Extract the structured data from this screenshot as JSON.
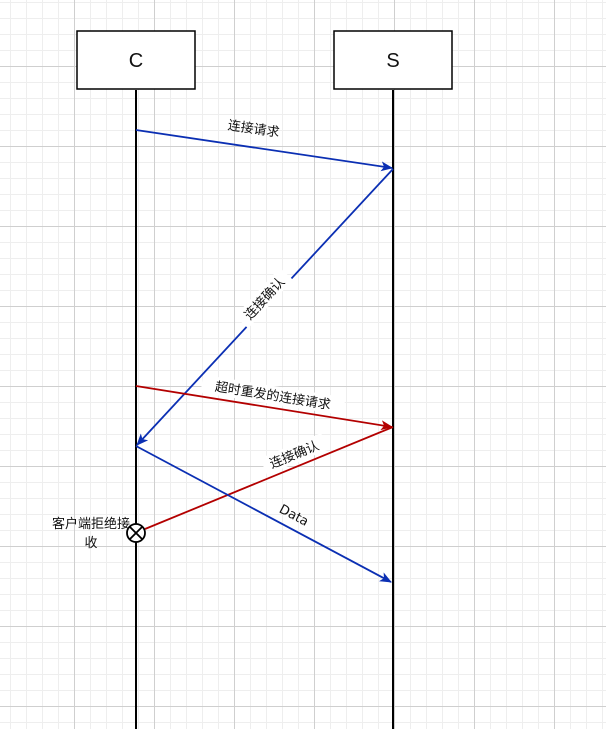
{
  "participants": {
    "client": "C",
    "server": "S"
  },
  "messages": {
    "conn_request": "连接请求",
    "conn_ack": "连接确认",
    "retry_request": "超时重发的连接请求",
    "conn_ack_2": "连接确认",
    "data": "Data"
  },
  "note": {
    "reject": "客户端拒绝接收"
  },
  "colors": {
    "blue": "#0b2fb3",
    "red": "#b30000",
    "line": "#000000"
  }
}
